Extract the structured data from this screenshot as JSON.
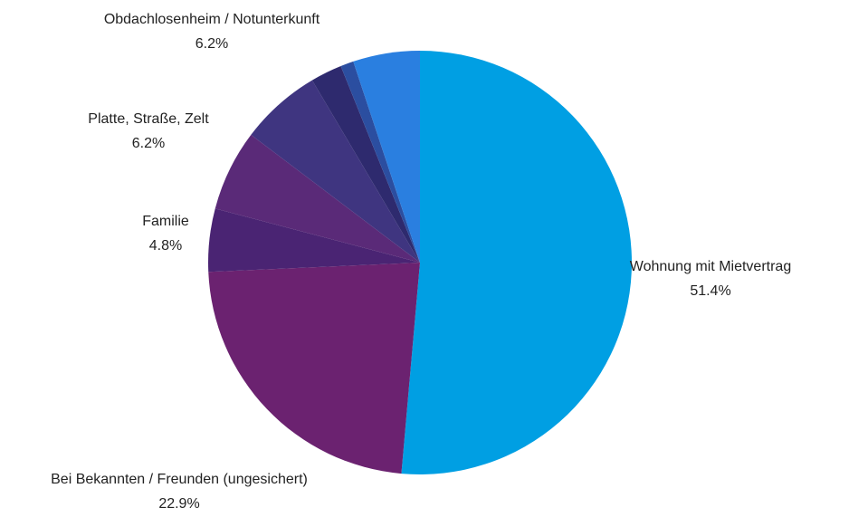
{
  "chart_data": {
    "type": "pie",
    "categories": [
      "Wohnung mit Mietvertrag",
      "Bei Bekannten / Freunden (ungesichert)",
      "Familie",
      "Platte, Straße, Zelt",
      "Obdachlosenheim / Notunterkunft",
      null,
      null,
      null
    ],
    "values": [
      51.4,
      22.9,
      4.8,
      6.2,
      6.2,
      2.4,
      1.0,
      5.1
    ],
    "value_labels": [
      "51.4%",
      "22.9%",
      "4.8%",
      "6.2%",
      "6.2%",
      null,
      null,
      null
    ],
    "colors": [
      "#009fe3",
      "#6b2270",
      "#4a2473",
      "#5a2a78",
      "#3f3580",
      "#2e2a6e",
      "#2b4ea0",
      "#2a7fe0"
    ]
  }
}
